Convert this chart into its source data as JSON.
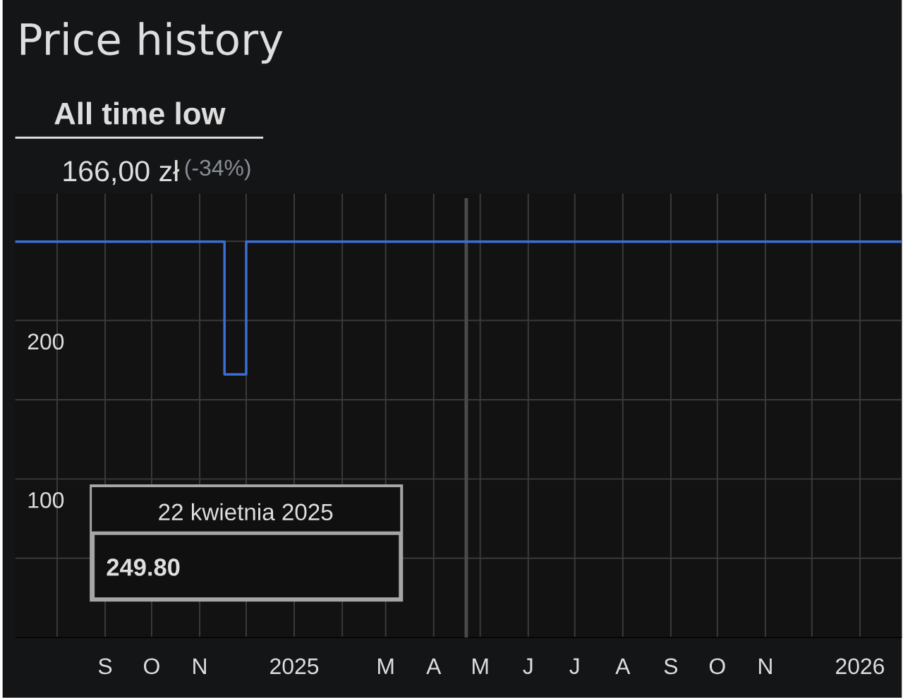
{
  "chart_data": {
    "type": "step",
    "title": "Price history",
    "subtitle": "All time low",
    "annotations": [
      "166,00 zł",
      "(-34%)",
      "22 kwietnia 2025",
      "249.80"
    ],
    "x": [
      "2024-07-05",
      "2024-11-17",
      "2024-12-01",
      "2026-01-28"
    ],
    "series": [
      {
        "color": "#3b6fd6",
        "values": [
          249.8,
          166,
          249.8,
          249.8
        ]
      }
    ],
    "xlim": [
      "2024-07-05",
      "2026-01-28"
    ],
    "ylim": [
      0,
      280
    ],
    "xticks": [
      {
        "value": "2024-08-01",
        "label": null
      },
      {
        "value": "2024-09-01",
        "label": "S"
      },
      {
        "value": "2024-10-01",
        "label": "O"
      },
      {
        "value": "2024-11-01",
        "label": "N"
      },
      {
        "value": "2024-12-01",
        "label": null
      },
      {
        "value": "2025-01-01",
        "label": "2025"
      },
      {
        "value": "2025-02-01",
        "label": null
      },
      {
        "value": "2025-03-01",
        "label": "M"
      },
      {
        "value": "2025-04-01",
        "label": "A"
      },
      {
        "value": "2025-05-01",
        "label": "M"
      },
      {
        "value": "2025-06-01",
        "label": "J"
      },
      {
        "value": "2025-07-01",
        "label": "J"
      },
      {
        "value": "2025-08-01",
        "label": "A"
      },
      {
        "value": "2025-09-01",
        "label": "S"
      },
      {
        "value": "2025-10-01",
        "label": "O"
      },
      {
        "value": "2025-11-01",
        "label": "N"
      },
      {
        "value": "2025-12-01",
        "label": null
      },
      {
        "value": "2026-01-01",
        "label": "2026"
      }
    ],
    "yticks": [
      {
        "value": 0,
        "label": null
      },
      {
        "value": 50,
        "label": null
      },
      100,
      {
        "value": 150,
        "label": null
      },
      200,
      {
        "value": 250,
        "label": null
      }
    ],
    "grid": true,
    "ref_lines": [
      {
        "axis": "x",
        "value": "2025-04-22",
        "color": "#4a4a4a"
      }
    ]
  }
}
